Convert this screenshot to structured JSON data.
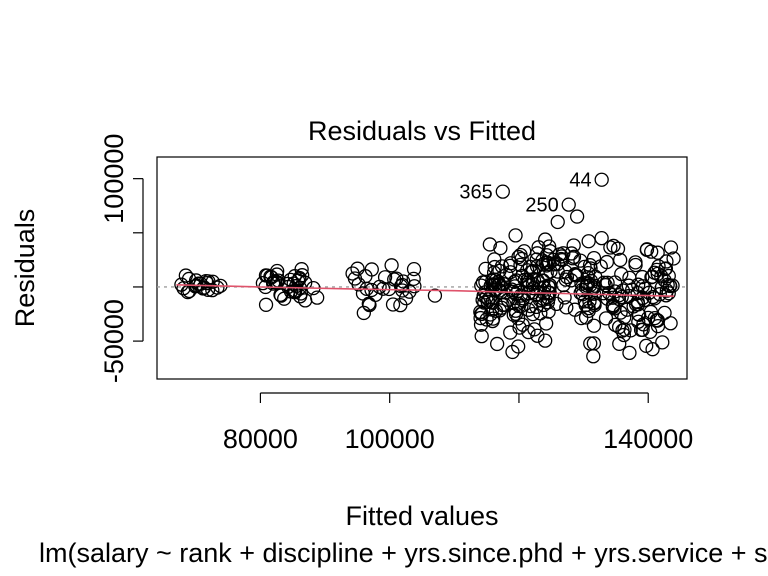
{
  "chart_data": {
    "type": "scatter",
    "title": "Residuals vs Fitted",
    "xlabel": "Fitted values",
    "ylabel": "Residuals",
    "subtitle": "lm(salary ~ rank + discipline + yrs.since.phd + yrs.service + sex)",
    "xlim": [
      64000,
      146000
    ],
    "ylim": [
      -85000,
      120000
    ],
    "x_ticks": [
      80000,
      100000,
      120000,
      140000
    ],
    "x_tick_labels": [
      "80000",
      "100000",
      "",
      "140000"
    ],
    "y_ticks": [
      -50000,
      0,
      50000,
      100000
    ],
    "y_tick_labels": [
      "-50000",
      "",
      "",
      "100000"
    ],
    "reference_line": 0,
    "smoother": [
      [
        67000,
        2000
      ],
      [
        80000,
        0
      ],
      [
        95000,
        -2000
      ],
      [
        110000,
        -3500
      ],
      [
        120000,
        -5000
      ],
      [
        130000,
        -6500
      ],
      [
        140000,
        -8000
      ],
      [
        144000,
        -8500
      ]
    ],
    "labeled_points": [
      {
        "label": "365",
        "x": 117500,
        "y": 88000
      },
      {
        "label": "250",
        "x": 127700,
        "y": 76000
      },
      {
        "label": "44",
        "x": 132800,
        "y": 99000
      }
    ],
    "clusters": [
      {
        "x": [
          67000,
          74000
        ],
        "y": [
          -12000,
          15000
        ],
        "n": 22
      },
      {
        "x": [
          80000,
          89000
        ],
        "y": [
          -22000,
          22000
        ],
        "n": 40
      },
      {
        "x": [
          94000,
          104000
        ],
        "y": [
          -25000,
          28000
        ],
        "n": 30
      },
      {
        "x": [
          114000,
          125000
        ],
        "y": [
          -65000,
          60000
        ],
        "n": 140
      },
      {
        "x": [
          124000,
          131000
        ],
        "y": [
          -45000,
          70000
        ],
        "n": 40
      },
      {
        "x": [
          129000,
          144000
        ],
        "y": [
          -70000,
          60000
        ],
        "n": 130
      }
    ],
    "extra_points": [
      {
        "x": 96000,
        "y": -24000
      },
      {
        "x": 107000,
        "y": -8000
      },
      {
        "x": 119000,
        "y": -60000
      },
      {
        "x": 131500,
        "y": -64000
      },
      {
        "x": 126000,
        "y": 60000
      },
      {
        "x": 129000,
        "y": 65000
      },
      {
        "x": 115000,
        "y": -30000
      }
    ],
    "line_colors": {
      "smoother": "#df536b",
      "reference": "#9e9e9e"
    }
  }
}
